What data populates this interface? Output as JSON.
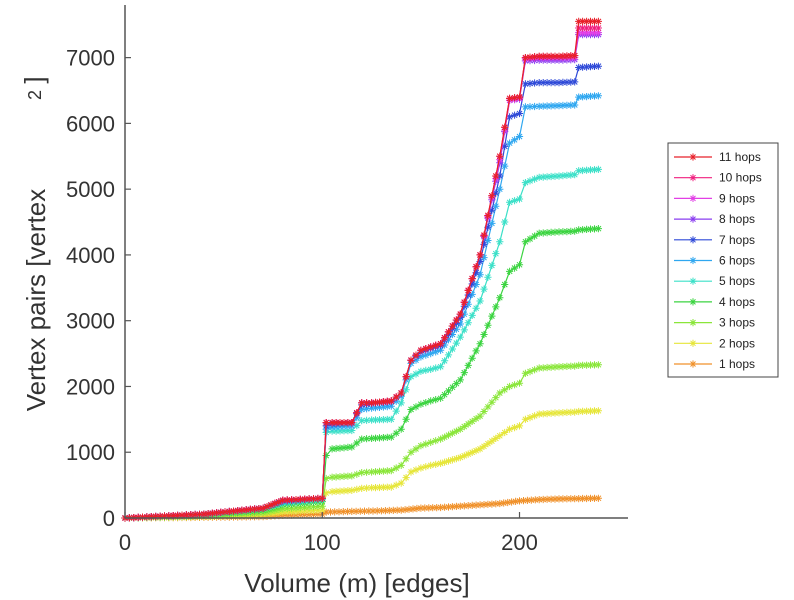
{
  "chart_data": {
    "type": "line",
    "title": "",
    "xlabel": "Volume (m) [edges]",
    "ylabel": "Vertex pairs [vertex",
    "ylabel_superscript": "2",
    "ylabel_suffix": "]",
    "xlim": [
      0,
      255
    ],
    "ylim": [
      0,
      7800
    ],
    "xticks": [
      0,
      100,
      200
    ],
    "yticks": [
      0,
      1000,
      2000,
      3000,
      4000,
      5000,
      6000,
      7000
    ],
    "grid": false,
    "legend_position": "right",
    "series": [
      {
        "name": "11 hops",
        "color": "#e8202a",
        "points": [
          [
            0,
            0
          ],
          [
            40,
            60
          ],
          [
            70,
            150
          ],
          [
            80,
            270
          ],
          [
            100,
            300
          ],
          [
            102,
            1450
          ],
          [
            105,
            1450
          ],
          [
            115,
            1450
          ],
          [
            120,
            1750
          ],
          [
            125,
            1750
          ],
          [
            135,
            1780
          ],
          [
            140,
            1900
          ],
          [
            145,
            2400
          ],
          [
            150,
            2550
          ],
          [
            155,
            2600
          ],
          [
            160,
            2650
          ],
          [
            170,
            3100
          ],
          [
            180,
            4000
          ],
          [
            190,
            5500
          ],
          [
            195,
            6380
          ],
          [
            200,
            6400
          ],
          [
            203,
            7000
          ],
          [
            210,
            7020
          ],
          [
            220,
            7020
          ],
          [
            228,
            7030
          ],
          [
            230,
            7550
          ],
          [
            240,
            7550
          ]
        ]
      },
      {
        "name": "10 hops",
        "color": "#f0207f",
        "points": [
          [
            0,
            0
          ],
          [
            40,
            60
          ],
          [
            70,
            150
          ],
          [
            80,
            270
          ],
          [
            100,
            300
          ],
          [
            102,
            1450
          ],
          [
            105,
            1450
          ],
          [
            115,
            1450
          ],
          [
            120,
            1750
          ],
          [
            125,
            1750
          ],
          [
            135,
            1780
          ],
          [
            140,
            1900
          ],
          [
            145,
            2400
          ],
          [
            150,
            2550
          ],
          [
            155,
            2600
          ],
          [
            160,
            2650
          ],
          [
            170,
            3100
          ],
          [
            180,
            4000
          ],
          [
            190,
            5500
          ],
          [
            195,
            6380
          ],
          [
            200,
            6400
          ],
          [
            203,
            7000
          ],
          [
            210,
            7020
          ],
          [
            220,
            7020
          ],
          [
            228,
            7030
          ],
          [
            230,
            7450
          ],
          [
            240,
            7450
          ]
        ]
      },
      {
        "name": "9 hops",
        "color": "#e23fe6",
        "points": [
          [
            0,
            0
          ],
          [
            40,
            60
          ],
          [
            70,
            150
          ],
          [
            80,
            270
          ],
          [
            100,
            300
          ],
          [
            102,
            1450
          ],
          [
            105,
            1450
          ],
          [
            115,
            1450
          ],
          [
            120,
            1750
          ],
          [
            125,
            1750
          ],
          [
            135,
            1780
          ],
          [
            140,
            1900
          ],
          [
            145,
            2400
          ],
          [
            150,
            2550
          ],
          [
            155,
            2600
          ],
          [
            160,
            2650
          ],
          [
            170,
            3100
          ],
          [
            180,
            4000
          ],
          [
            190,
            5450
          ],
          [
            195,
            6350
          ],
          [
            200,
            6380
          ],
          [
            203,
            6980
          ],
          [
            210,
            7000
          ],
          [
            220,
            7000
          ],
          [
            228,
            7000
          ],
          [
            230,
            7380
          ],
          [
            240,
            7380
          ]
        ]
      },
      {
        "name": "8 hops",
        "color": "#8a3df0",
        "points": [
          [
            0,
            0
          ],
          [
            40,
            60
          ],
          [
            70,
            150
          ],
          [
            80,
            270
          ],
          [
            100,
            300
          ],
          [
            102,
            1450
          ],
          [
            105,
            1450
          ],
          [
            115,
            1450
          ],
          [
            120,
            1750
          ],
          [
            125,
            1750
          ],
          [
            135,
            1780
          ],
          [
            140,
            1900
          ],
          [
            145,
            2400
          ],
          [
            150,
            2550
          ],
          [
            155,
            2600
          ],
          [
            160,
            2650
          ],
          [
            170,
            3100
          ],
          [
            180,
            4000
          ],
          [
            190,
            5400
          ],
          [
            195,
            6350
          ],
          [
            200,
            6370
          ],
          [
            203,
            6950
          ],
          [
            210,
            6960
          ],
          [
            220,
            6960
          ],
          [
            228,
            6970
          ],
          [
            230,
            7350
          ],
          [
            240,
            7350
          ]
        ]
      },
      {
        "name": "7 hops",
        "color": "#2f4ad8",
        "points": [
          [
            0,
            0
          ],
          [
            40,
            60
          ],
          [
            70,
            150
          ],
          [
            80,
            260
          ],
          [
            100,
            300
          ],
          [
            102,
            1400
          ],
          [
            105,
            1430
          ],
          [
            115,
            1450
          ],
          [
            120,
            1720
          ],
          [
            125,
            1740
          ],
          [
            135,
            1770
          ],
          [
            140,
            1900
          ],
          [
            145,
            2400
          ],
          [
            150,
            2520
          ],
          [
            155,
            2580
          ],
          [
            160,
            2620
          ],
          [
            170,
            3050
          ],
          [
            180,
            3900
          ],
          [
            190,
            5200
          ],
          [
            195,
            6100
          ],
          [
            200,
            6150
          ],
          [
            203,
            6600
          ],
          [
            210,
            6620
          ],
          [
            220,
            6620
          ],
          [
            228,
            6630
          ],
          [
            230,
            6850
          ],
          [
            240,
            6870
          ]
        ]
      },
      {
        "name": "6 hops",
        "color": "#2fa7f0",
        "points": [
          [
            0,
            0
          ],
          [
            40,
            60
          ],
          [
            70,
            150
          ],
          [
            80,
            250
          ],
          [
            100,
            300
          ],
          [
            102,
            1350
          ],
          [
            105,
            1380
          ],
          [
            115,
            1400
          ],
          [
            120,
            1650
          ],
          [
            125,
            1670
          ],
          [
            135,
            1700
          ],
          [
            140,
            1850
          ],
          [
            145,
            2350
          ],
          [
            150,
            2450
          ],
          [
            155,
            2500
          ],
          [
            160,
            2550
          ],
          [
            170,
            2950
          ],
          [
            180,
            3700
          ],
          [
            190,
            5000
          ],
          [
            195,
            5700
          ],
          [
            200,
            5800
          ],
          [
            203,
            6250
          ],
          [
            210,
            6260
          ],
          [
            220,
            6270
          ],
          [
            228,
            6280
          ],
          [
            230,
            6400
          ],
          [
            240,
            6420
          ]
        ]
      },
      {
        "name": "5 hops",
        "color": "#3be0c8",
        "points": [
          [
            0,
            0
          ],
          [
            40,
            50
          ],
          [
            70,
            140
          ],
          [
            80,
            230
          ],
          [
            100,
            280
          ],
          [
            102,
            1300
          ],
          [
            105,
            1320
          ],
          [
            115,
            1330
          ],
          [
            120,
            1480
          ],
          [
            125,
            1490
          ],
          [
            135,
            1500
          ],
          [
            140,
            1750
          ],
          [
            145,
            2150
          ],
          [
            150,
            2230
          ],
          [
            155,
            2260
          ],
          [
            160,
            2300
          ],
          [
            170,
            2750
          ],
          [
            180,
            3300
          ],
          [
            190,
            4200
          ],
          [
            195,
            4800
          ],
          [
            200,
            4850
          ],
          [
            203,
            5100
          ],
          [
            210,
            5180
          ],
          [
            220,
            5200
          ],
          [
            228,
            5220
          ],
          [
            230,
            5280
          ],
          [
            240,
            5300
          ]
        ]
      },
      {
        "name": "4 hops",
        "color": "#3bd440",
        "points": [
          [
            0,
            0
          ],
          [
            40,
            40
          ],
          [
            70,
            120
          ],
          [
            80,
            200
          ],
          [
            100,
            250
          ],
          [
            102,
            950
          ],
          [
            105,
            1050
          ],
          [
            115,
            1080
          ],
          [
            120,
            1200
          ],
          [
            125,
            1210
          ],
          [
            135,
            1230
          ],
          [
            140,
            1350
          ],
          [
            145,
            1650
          ],
          [
            150,
            1730
          ],
          [
            155,
            1780
          ],
          [
            160,
            1820
          ],
          [
            170,
            2100
          ],
          [
            180,
            2650
          ],
          [
            190,
            3350
          ],
          [
            195,
            3750
          ],
          [
            200,
            3850
          ],
          [
            203,
            4200
          ],
          [
            210,
            4330
          ],
          [
            220,
            4350
          ],
          [
            228,
            4360
          ],
          [
            230,
            4380
          ],
          [
            240,
            4400
          ]
        ]
      },
      {
        "name": "3 hops",
        "color": "#8ae63a",
        "points": [
          [
            0,
            0
          ],
          [
            40,
            30
          ],
          [
            70,
            80
          ],
          [
            80,
            140
          ],
          [
            100,
            180
          ],
          [
            102,
            600
          ],
          [
            105,
            620
          ],
          [
            115,
            640
          ],
          [
            120,
            690
          ],
          [
            125,
            700
          ],
          [
            135,
            720
          ],
          [
            140,
            800
          ],
          [
            145,
            1000
          ],
          [
            150,
            1100
          ],
          [
            155,
            1150
          ],
          [
            160,
            1200
          ],
          [
            170,
            1350
          ],
          [
            180,
            1550
          ],
          [
            190,
            1900
          ],
          [
            195,
            2000
          ],
          [
            200,
            2050
          ],
          [
            203,
            2200
          ],
          [
            210,
            2280
          ],
          [
            220,
            2300
          ],
          [
            228,
            2310
          ],
          [
            230,
            2320
          ],
          [
            240,
            2330
          ]
        ]
      },
      {
        "name": "2 hops",
        "color": "#e6e63a",
        "points": [
          [
            0,
            0
          ],
          [
            40,
            20
          ],
          [
            70,
            50
          ],
          [
            80,
            90
          ],
          [
            100,
            120
          ],
          [
            102,
            380
          ],
          [
            105,
            400
          ],
          [
            115,
            420
          ],
          [
            120,
            450
          ],
          [
            125,
            460
          ],
          [
            135,
            470
          ],
          [
            140,
            530
          ],
          [
            145,
            700
          ],
          [
            150,
            760
          ],
          [
            155,
            800
          ],
          [
            160,
            830
          ],
          [
            170,
            920
          ],
          [
            180,
            1050
          ],
          [
            190,
            1250
          ],
          [
            195,
            1350
          ],
          [
            200,
            1400
          ],
          [
            203,
            1500
          ],
          [
            210,
            1580
          ],
          [
            220,
            1600
          ],
          [
            228,
            1610
          ],
          [
            230,
            1620
          ],
          [
            240,
            1630
          ]
        ]
      },
      {
        "name": "1 hops",
        "color": "#f0912a",
        "points": [
          [
            0,
            0
          ],
          [
            40,
            10
          ],
          [
            70,
            20
          ],
          [
            80,
            40
          ],
          [
            100,
            60
          ],
          [
            102,
            90
          ],
          [
            115,
            100
          ],
          [
            130,
            110
          ],
          [
            140,
            120
          ],
          [
            150,
            150
          ],
          [
            160,
            160
          ],
          [
            170,
            180
          ],
          [
            180,
            200
          ],
          [
            190,
            220
          ],
          [
            200,
            260
          ],
          [
            210,
            280
          ],
          [
            220,
            290
          ],
          [
            230,
            295
          ],
          [
            240,
            300
          ]
        ]
      }
    ]
  }
}
